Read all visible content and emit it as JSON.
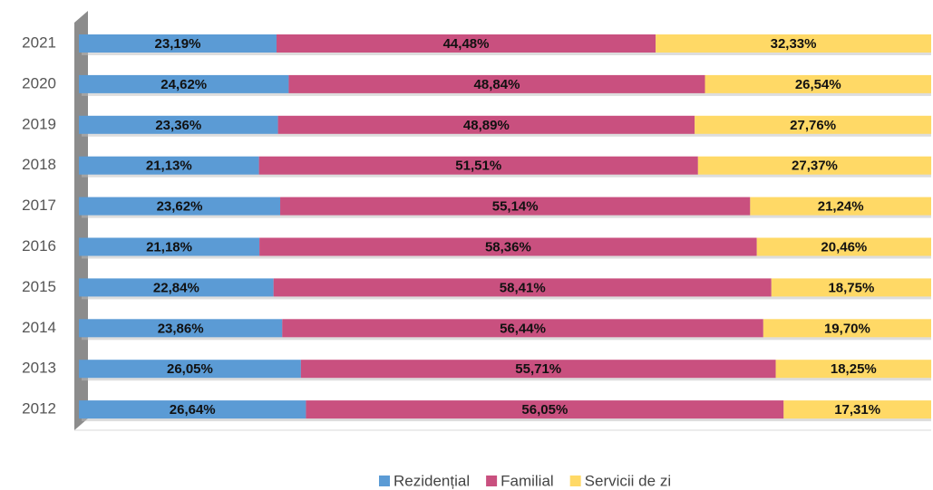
{
  "chart_data": {
    "type": "stacked_bar_horizontal",
    "categories": [
      "2021",
      "2020",
      "2019",
      "2018",
      "2017",
      "2016",
      "2015",
      "2014",
      "2013",
      "2012"
    ],
    "series": [
      {
        "name": "Rezidențial",
        "color": "#5b9bd5",
        "values": [
          23.19,
          24.62,
          23.36,
          21.13,
          23.62,
          21.18,
          22.84,
          23.86,
          26.05,
          26.64
        ],
        "value_labels": [
          "23,19%",
          "24,62%",
          "23,36%",
          "21,13%",
          "23,62%",
          "21,18%",
          "22,84%",
          "23,86%",
          "26,05%",
          "26,64%"
        ]
      },
      {
        "name": "Familial",
        "color": "#c9507f",
        "values": [
          44.48,
          48.84,
          48.89,
          51.51,
          55.14,
          58.36,
          58.41,
          56.44,
          55.71,
          56.05
        ],
        "value_labels": [
          "44,48%",
          "48,84%",
          "48,89%",
          "51,51%",
          "55,14%",
          "58,36%",
          "58,41%",
          "56,44%",
          "55,71%",
          "56,05%"
        ]
      },
      {
        "name": "Servicii de zi",
        "color": "#ffd966",
        "values": [
          32.33,
          26.54,
          27.76,
          27.37,
          21.24,
          20.46,
          18.75,
          19.7,
          18.25,
          17.31
        ],
        "value_labels": [
          "32,33%",
          "26,54%",
          "27,76%",
          "27,37%",
          "21,24%",
          "20,46%",
          "18,75%",
          "19,70%",
          "18,25%",
          "17,31%"
        ]
      }
    ],
    "xlim": [
      0,
      100
    ],
    "legend": "bottom"
  }
}
